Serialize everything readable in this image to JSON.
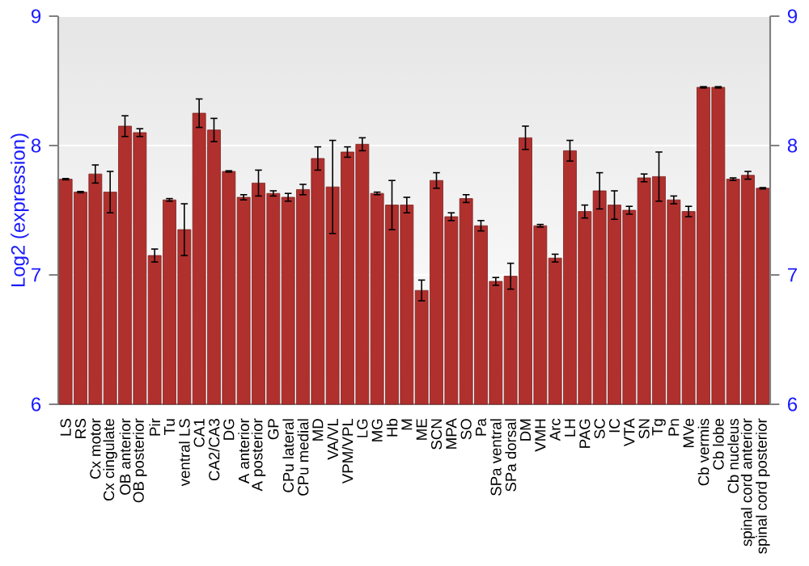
{
  "chart_data": {
    "type": "bar",
    "ylabel": "Log2 (expression)",
    "categories": [
      "LS",
      "RS",
      "Cx motor",
      "Cx cingulate",
      "OB anterior",
      "OB posterior",
      "Pir",
      "Tu",
      "ventral LS",
      "CA1",
      "CA2/CA3",
      "DG",
      "A anterior",
      "A posterior",
      "GP",
      "CPu lateral",
      "CPu medial",
      "MD",
      "VA/VL",
      "VPM/VPL",
      "LG",
      "MG",
      "Hb",
      "M",
      "ME",
      "SCN",
      "MPA",
      "SO",
      "Pa",
      "SPa ventral",
      "SPa dorsal",
      "DM",
      "VMH",
      "Arc",
      "LH",
      "PAG",
      "SC",
      "IC",
      "VTA",
      "SN",
      "Tg",
      "Pn",
      "MVe",
      "Cb vermis",
      "Cb lobe",
      "Cb nucleus",
      "spinal cord anterior",
      "spinal cord posterior"
    ],
    "values": [
      7.74,
      7.64,
      7.78,
      7.64,
      8.15,
      8.1,
      7.15,
      7.58,
      7.35,
      8.25,
      8.12,
      7.8,
      7.6,
      7.71,
      7.63,
      7.6,
      7.66,
      7.9,
      7.68,
      7.95,
      8.01,
      7.63,
      7.54,
      7.54,
      6.88,
      7.73,
      7.45,
      7.59,
      7.38,
      6.95,
      6.99,
      8.06,
      7.38,
      7.13,
      7.96,
      7.49,
      7.65,
      7.54,
      7.5,
      7.75,
      7.76,
      7.58,
      7.49,
      8.45,
      8.45,
      7.74,
      7.77,
      7.67
    ],
    "errors": [
      0.005,
      0.005,
      0.07,
      0.16,
      0.08,
      0.03,
      0.05,
      0.01,
      0.2,
      0.11,
      0.09,
      0.005,
      0.02,
      0.1,
      0.02,
      0.03,
      0.04,
      0.09,
      0.36,
      0.04,
      0.05,
      0.01,
      0.19,
      0.06,
      0.08,
      0.06,
      0.03,
      0.03,
      0.04,
      0.03,
      0.1,
      0.09,
      0.01,
      0.03,
      0.08,
      0.05,
      0.14,
      0.11,
      0.03,
      0.03,
      0.19,
      0.03,
      0.04,
      0.005,
      0.005,
      0.01,
      0.03,
      0.005
    ],
    "color": "#b0302e",
    "ylim": [
      6,
      9
    ],
    "yticks": [
      6,
      7,
      8,
      9
    ],
    "y2lim": [
      6,
      9
    ],
    "y2ticks": [
      6,
      7,
      8,
      9
    ],
    "grid": "y"
  }
}
